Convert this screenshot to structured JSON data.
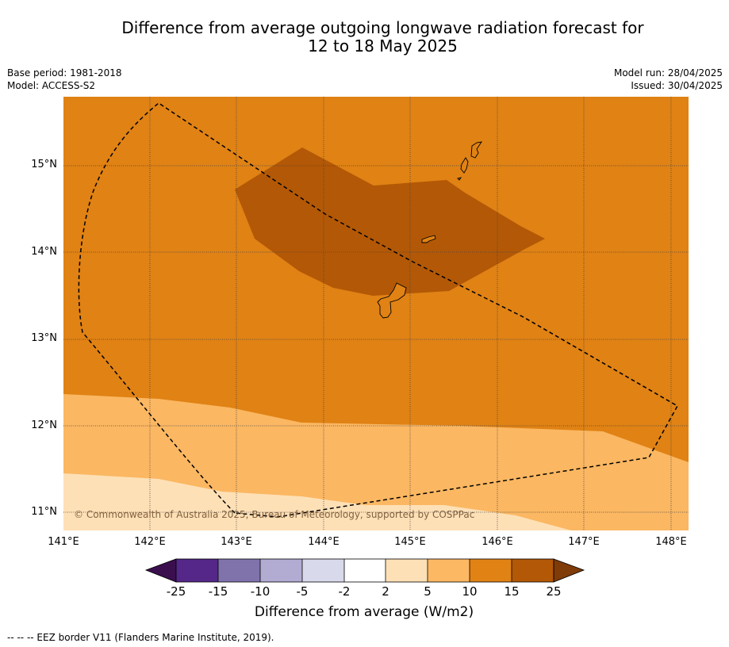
{
  "title": {
    "line1": "Difference from average outgoing longwave radiation forecast for",
    "line2": "12 to 18 May 2025"
  },
  "meta": {
    "base_period": "Base period: 1981-2018",
    "model": "Model: ACCESS-S2",
    "model_run": "Model run: 28/04/2025",
    "issued": "Issued: 30/04/2025"
  },
  "map": {
    "lon_range": [
      141.0,
      148.2
    ],
    "lat_range": [
      10.8,
      15.8
    ],
    "longitude_ticks": [
      "141°E",
      "142°E",
      "143°E",
      "144°E",
      "145°E",
      "146°E",
      "147°E",
      "148°E"
    ],
    "latitude_ticks": [
      "11°N",
      "12°N",
      "13°N",
      "14°N",
      "15°N"
    ],
    "copyright": "© Commonwealth of Australia 2025, Bureau of Meteorology, supported by COSPPac",
    "fill_colors": {
      "5_to_10": "#fbb762",
      "10_to_15": "#e08214",
      "15_to_25": "#b35806",
      "2_to_5": "#fee0b6"
    }
  },
  "colorbar": {
    "ticks": [
      "-25",
      "-15",
      "-10",
      "-5",
      "-2",
      "2",
      "5",
      "10",
      "15",
      "25"
    ],
    "colors": [
      "#3b0f4e",
      "#542788",
      "#8073ac",
      "#b2abd2",
      "#d8daeb",
      "#ffffff",
      "#fee0b6",
      "#fdb863",
      "#e08214",
      "#b35806",
      "#7f3b08"
    ],
    "title": "Difference from average (W/m2)"
  },
  "footer": {
    "legend": "--  --  -- EEZ border V11 (Flanders Marine Institute, 2019)."
  }
}
